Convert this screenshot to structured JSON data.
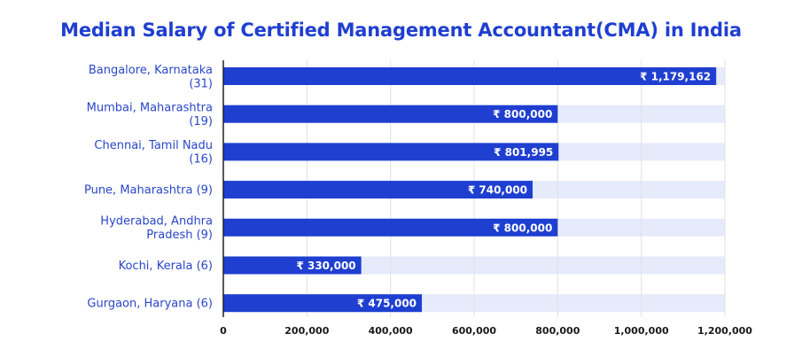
{
  "chart_data": {
    "type": "bar",
    "orientation": "horizontal",
    "title": "Median Salary of Certified Management Accountant(CMA) in India",
    "categories": [
      [
        "Bangalore, Karnataka",
        "(31)"
      ],
      [
        "Mumbai, Maharashtra",
        "(19)"
      ],
      [
        "Chennai, Tamil Nadu",
        "(16)"
      ],
      [
        "Pune, Maharashtra (9)"
      ],
      [
        "Hyderabad, Andhra",
        "Pradesh (9)"
      ],
      [
        "Kochi, Kerala (6)"
      ],
      [
        "Gurgaon, Haryana (6)"
      ]
    ],
    "values": [
      1179162,
      800000,
      801995,
      740000,
      800000,
      330000,
      475000
    ],
    "value_labels": [
      "₹ 1,179,162",
      "₹ 800,000",
      "₹ 801,995",
      "₹ 740,000",
      "₹ 800,000",
      "₹ 330,000",
      "₹ 475,000"
    ],
    "xlim": [
      0,
      1200000
    ],
    "xticks": [
      0,
      200000,
      400000,
      600000,
      800000,
      1000000,
      1200000
    ],
    "xtick_labels": [
      "0",
      "200,000",
      "400,000",
      "600,000",
      "800,000",
      "1,000,000",
      "1,200,000"
    ],
    "xlabel": "",
    "ylabel": "",
    "grid": true,
    "colors": {
      "bar": "#1f3fd1",
      "background_band": "#e6ebfb",
      "grid": "#e0e0e0",
      "title": "#1f3fd1",
      "category_text": "#2a46c8",
      "axis": "#222222"
    }
  }
}
